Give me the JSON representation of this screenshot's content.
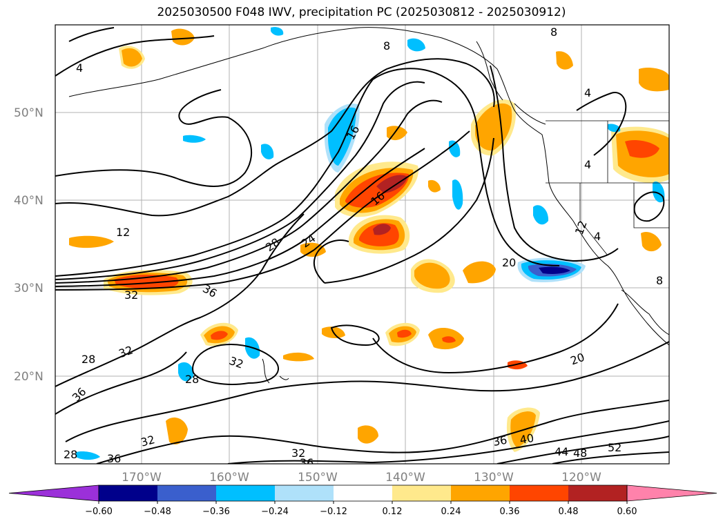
{
  "title": "2025030500 F048 IWV, precipitation PC (2025030812 - 2025030912)",
  "map": {
    "lat_labels": [
      "50°N",
      "40°N",
      "30°N",
      "20°N"
    ],
    "lon_labels": [
      "170°W",
      "160°W",
      "150°W",
      "140°W",
      "130°W",
      "120°W"
    ]
  },
  "colorbar": {
    "ticks": [
      "−0.60",
      "−0.48",
      "−0.36",
      "−0.24",
      "−0.12",
      "0.12",
      "0.24",
      "0.36",
      "0.48",
      "0.60"
    ],
    "colors": [
      "#9b30d9",
      "#00008b",
      "#3a5fcd",
      "#00bfff",
      "#afe1fa",
      "#ffffff",
      "#ffe98c",
      "#ffa500",
      "#ff4500",
      "#b22222",
      "#ff82ab"
    ]
  },
  "contour_labels": [
    "4",
    "8",
    "12",
    "16",
    "16",
    "20",
    "20",
    "24",
    "28",
    "28",
    "28",
    "28",
    "32",
    "32",
    "32",
    "32",
    "32",
    "36",
    "36",
    "36",
    "36",
    "36",
    "40",
    "44",
    "48",
    "52",
    "4",
    "4",
    "4",
    "8",
    "8",
    "12"
  ],
  "colors": {
    "positive": [
      "#ffe98c",
      "#ffa500",
      "#ff4500",
      "#b22222"
    ],
    "negative": [
      "#afe1fa",
      "#00bfff",
      "#3a5fcd",
      "#00008b"
    ]
  }
}
